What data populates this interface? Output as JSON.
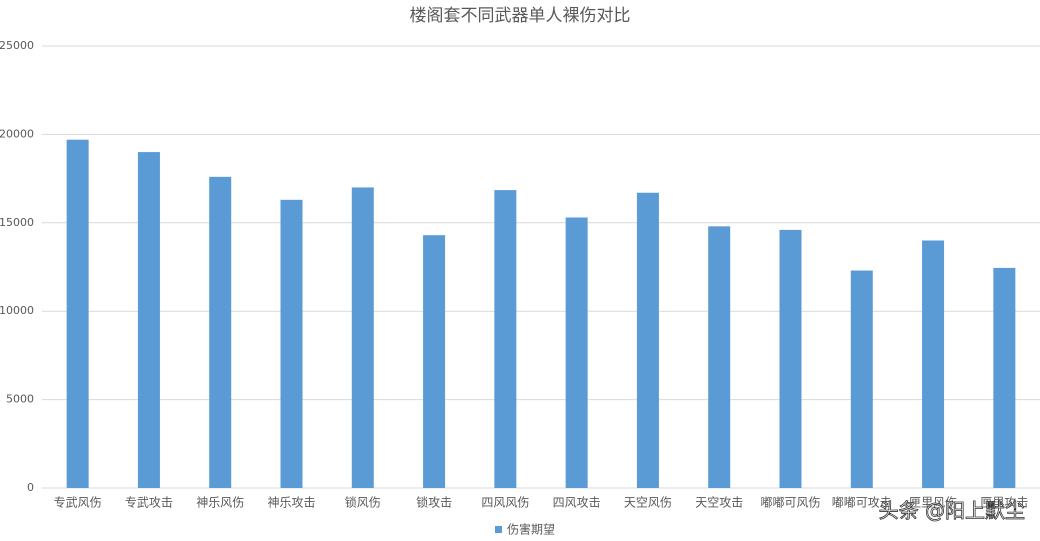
{
  "chart_data": {
    "type": "bar",
    "title": "楼阁套不同武器单人裸伤对比",
    "categories": [
      "专武风伤",
      "专武攻击",
      "神乐风伤",
      "神乐攻击",
      "锁风伤",
      "锁攻击",
      "四风风伤",
      "四风攻击",
      "天空风伤",
      "天空攻击",
      "嘟嘟可风伤",
      "嘟嘟可攻击",
      "匣里风伤",
      "匣里攻击"
    ],
    "series": [
      {
        "name": "伤害期望",
        "color": "#5b9bd5",
        "values": [
          19700,
          19000,
          17600,
          16300,
          17000,
          14300,
          16850,
          15300,
          16700,
          14800,
          14600,
          12300,
          14000,
          12450
        ]
      }
    ],
    "ylim": [
      0,
      25000
    ],
    "yticks": [
      0,
      5000,
      10000,
      15000,
      20000,
      25000
    ],
    "grid": true,
    "legend": "bottom",
    "watermark": "头条 @阳上默尘"
  }
}
